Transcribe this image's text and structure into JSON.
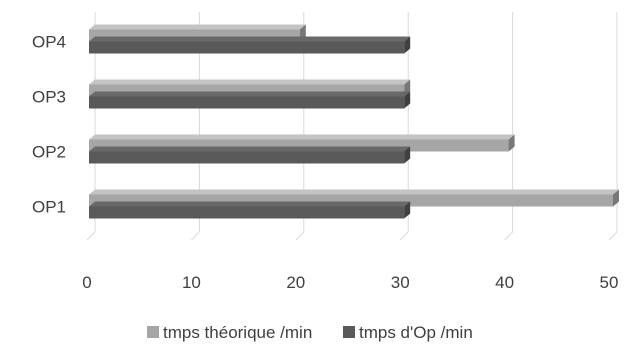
{
  "chart_data": {
    "type": "bar",
    "orientation": "horizontal",
    "style": "3d",
    "categories": [
      "OP1",
      "OP2",
      "OP3",
      "OP4"
    ],
    "series": [
      {
        "name": "tmps théorique /min",
        "values": [
          50,
          40,
          30,
          20
        ],
        "color": "#a6a6a6"
      },
      {
        "name": "tmps d'Op /min",
        "values": [
          30,
          30,
          30,
          30
        ],
        "color": "#595959"
      }
    ],
    "x_ticks": [
      "0",
      "10",
      "20",
      "30",
      "40",
      "50"
    ],
    "xlim": [
      0,
      50
    ],
    "grid": true,
    "legend_position": "bottom",
    "title": "",
    "xlabel": "",
    "ylabel": ""
  }
}
